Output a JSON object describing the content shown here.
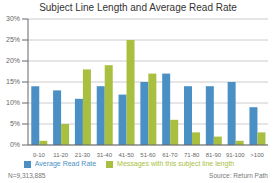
{
  "chart_data": {
    "type": "bar",
    "title": "Subject Line Length and Average Read Rate",
    "categories": [
      "0-10",
      "11-20",
      "21-30",
      "31-40",
      "41-50",
      "51-60",
      "61-70",
      "71-80",
      "81-90",
      "91-100",
      ">100"
    ],
    "series": [
      {
        "name": "Average Read Rate",
        "color": "#4A90C4",
        "values": [
          14,
          13,
          11,
          14,
          12,
          15,
          17,
          14,
          14,
          15,
          9
        ]
      },
      {
        "name": "Messages with this subject line length",
        "color": "#A8BF3F",
        "values": [
          1,
          5,
          18,
          19,
          25,
          17,
          6,
          3,
          2,
          1,
          3
        ]
      }
    ],
    "ylim": [
      0,
      30
    ],
    "yticks": [
      {
        "value": 0,
        "label": "0%"
      },
      {
        "value": 5,
        "label": "5%"
      },
      {
        "value": 10,
        "label": "10%"
      },
      {
        "value": 15,
        "label": "15%"
      },
      {
        "value": 20,
        "label": "20%"
      },
      {
        "value": 25,
        "label": "25%"
      },
      {
        "value": 30,
        "label": "30%"
      }
    ],
    "grid": true,
    "legend": "bottom",
    "annotations": [
      "N=9,313,885",
      "Source: Return Path"
    ]
  }
}
